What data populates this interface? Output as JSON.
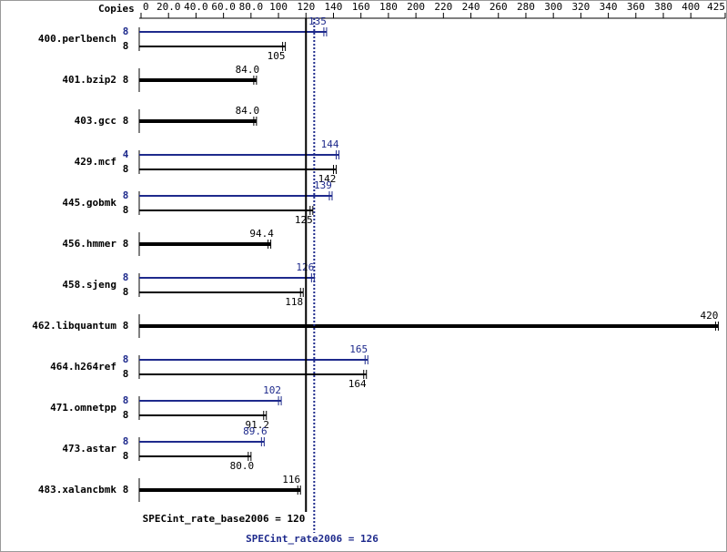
{
  "chart_data": {
    "type": "bar",
    "orientation": "horizontal",
    "copies_header": "Copies",
    "categories": [
      "400.perlbench",
      "401.bzip2",
      "403.gcc",
      "429.mcf",
      "445.gobmk",
      "456.hmmer",
      "458.sjeng",
      "462.libquantum",
      "464.h264ref",
      "471.omnetpp",
      "473.astar",
      "483.xalancbmk"
    ],
    "series": [
      {
        "color": "#1e2a8c",
        "copies": [
          8,
          null,
          null,
          4,
          8,
          null,
          8,
          null,
          8,
          8,
          8,
          null
        ],
        "values": [
          135,
          null,
          null,
          144,
          139,
          null,
          126,
          null,
          165,
          102,
          89.6,
          null
        ],
        "value_labels": [
          "135",
          null,
          null,
          "144",
          "139",
          null,
          "126",
          null,
          "165",
          "102",
          "89.6",
          null
        ]
      },
      {
        "color": "#000000",
        "copies": [
          8,
          8,
          8,
          8,
          8,
          8,
          8,
          8,
          8,
          8,
          8,
          8
        ],
        "values": [
          105,
          84,
          84,
          142,
          125,
          94.4,
          118,
          420,
          164,
          91.2,
          80,
          116
        ],
        "value_labels": [
          "105",
          "84.0",
          "84.0",
          "142",
          "125",
          "94.4",
          "118",
          "420",
          "164",
          "91.2",
          "80.0",
          "116"
        ]
      }
    ],
    "xlim": [
      0,
      425
    ],
    "xticks": [
      0,
      {
        "value": 20,
        "label": "20.0"
      },
      {
        "value": 40,
        "label": "40.0"
      },
      {
        "value": 60,
        "label": "60.0"
      },
      {
        "value": 80,
        "label": "80.0"
      },
      100,
      120,
      140,
      160,
      180,
      200,
      220,
      240,
      260,
      280,
      300,
      320,
      340,
      360,
      380,
      400,
      425
    ],
    "reference_lines": [
      {
        "label": "SPECint_rate_base2006 = 120",
        "value": 120,
        "color": "#000000"
      },
      {
        "label": "SPECint_rate2006 = 126",
        "value": 126,
        "color": "#1e2a8c"
      }
    ]
  }
}
